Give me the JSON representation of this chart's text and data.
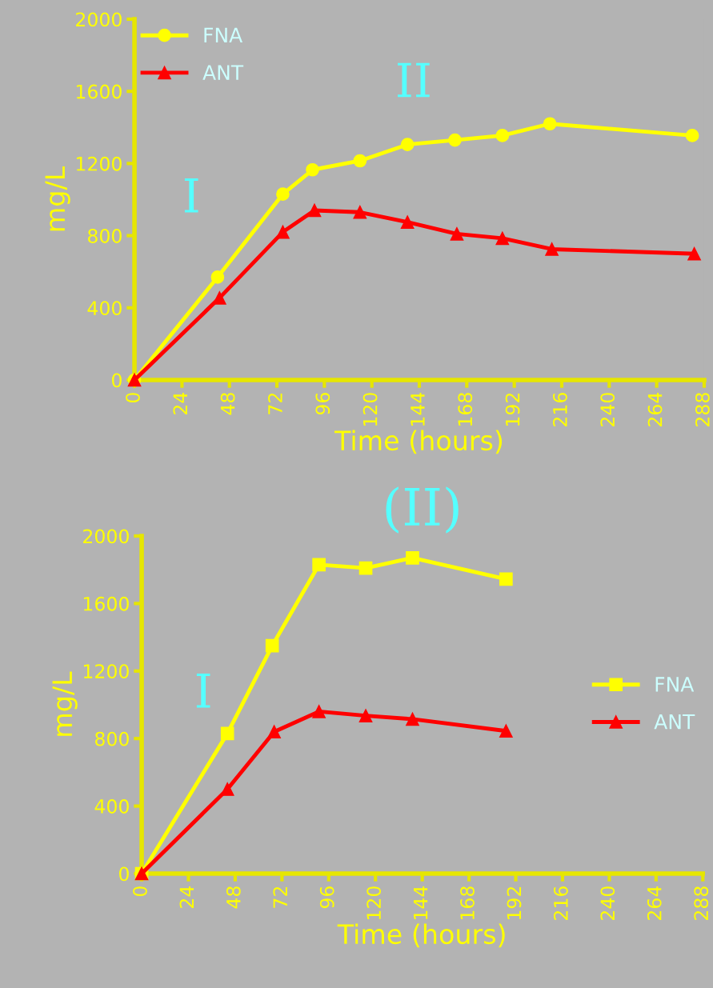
{
  "chart_data": [
    {
      "type": "line",
      "xlabel": "Time (hours)",
      "ylabel": "mg/L",
      "annotations": [
        "I",
        "II"
      ],
      "xlim": [
        0,
        288
      ],
      "xticks": [
        0,
        24,
        48,
        72,
        96,
        120,
        144,
        168,
        192,
        216,
        240,
        264,
        288
      ],
      "ylim": [
        0,
        2000
      ],
      "yticks": [
        0,
        400,
        800,
        1200,
        1600,
        2000
      ],
      "legend": "top left",
      "series": [
        {
          "name": "FNA",
          "color": "#ffff00",
          "marker": "circle",
          "x": [
            0,
            42,
            75,
            90,
            114,
            138,
            162,
            186,
            210,
            282
          ],
          "values": [
            0,
            570,
            1030,
            1165,
            1215,
            1305,
            1330,
            1355,
            1420,
            1355
          ]
        },
        {
          "name": "ANT",
          "color": "#ff0000",
          "marker": "triangle",
          "x": [
            0,
            43,
            75,
            91,
            114,
            138,
            163,
            186,
            211,
            283
          ],
          "values": [
            0,
            455,
            820,
            940,
            930,
            875,
            810,
            785,
            725,
            700
          ]
        }
      ]
    },
    {
      "type": "line",
      "title": "(II)",
      "xlabel": "Time (hours)",
      "ylabel": "mg/L",
      "annotations": [
        "I"
      ],
      "xlim": [
        0,
        288
      ],
      "xticks": [
        0,
        24,
        48,
        72,
        96,
        120,
        144,
        168,
        192,
        216,
        240,
        264,
        288
      ],
      "ylim": [
        0,
        2000
      ],
      "yticks": [
        0,
        400,
        800,
        1200,
        1600,
        2000
      ],
      "legend": "center right",
      "series": [
        {
          "name": "FNA",
          "color": "#ffff00",
          "marker": "square",
          "x": [
            0,
            44,
            67,
            91,
            115,
            139,
            187
          ],
          "values": [
            0,
            830,
            1350,
            1830,
            1810,
            1870,
            1745
          ]
        },
        {
          "name": "ANT",
          "color": "#ff0000",
          "marker": "triangle",
          "x": [
            0,
            44,
            68,
            91,
            115,
            139,
            187
          ],
          "values": [
            0,
            500,
            840,
            960,
            935,
            915,
            845
          ]
        }
      ]
    }
  ]
}
